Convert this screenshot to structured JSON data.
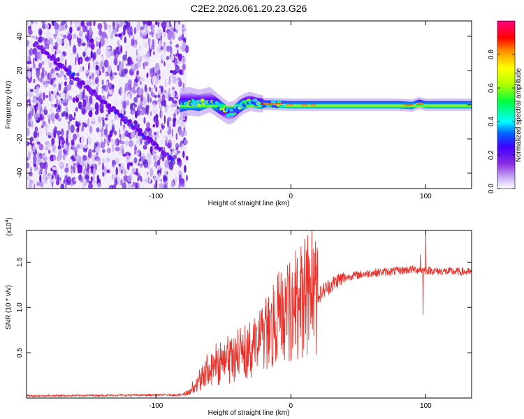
{
  "title": "C2E2.2026.061.20.23.G26",
  "chart_data": [
    {
      "type": "heatmap",
      "xlabel": "Height of straight line (km)",
      "ylabel": "Frequency (Hz)",
      "xlim": [
        -196,
        134
      ],
      "ylim": [
        -49,
        49
      ],
      "x_ticks": [
        -100,
        0,
        100
      ],
      "x_tick_labels": [
        "-100",
        "0",
        "100"
      ],
      "y_ticks": [
        -40,
        -20,
        0,
        20,
        40
      ],
      "y_tick_labels": [
        "-40",
        "-20",
        "0",
        "20",
        "40"
      ],
      "noise_region_x": [
        -196,
        -77
      ],
      "diagonal_track": {
        "start": [
          -190,
          36
        ],
        "end": [
          -88,
          -32
        ]
      },
      "signal_track": [
        [
          -82,
          1
        ],
        [
          -75,
          2
        ],
        [
          -68,
          1
        ],
        [
          -60,
          3
        ],
        [
          -55,
          0
        ],
        [
          -50,
          -3
        ],
        [
          -46,
          -5
        ],
        [
          -42,
          -4
        ],
        [
          -38,
          -1
        ],
        [
          -34,
          1
        ],
        [
          -30,
          2
        ],
        [
          -25,
          1
        ],
        [
          -20,
          0.5
        ],
        [
          -10,
          0.3
        ],
        [
          0,
          0
        ],
        [
          20,
          0
        ],
        [
          50,
          0
        ],
        [
          80,
          0
        ],
        [
          90,
          -0.5
        ],
        [
          95,
          1
        ],
        [
          100,
          0
        ],
        [
          134,
          0
        ]
      ],
      "colorbar": {
        "label": "Normalized spectral amplitude",
        "ticks": [
          0.0,
          0.2,
          0.4,
          0.6,
          0.8
        ],
        "tick_labels": [
          "0.0",
          "0.2",
          "0.4",
          "0.6",
          "0.8"
        ],
        "range": [
          0,
          1
        ]
      }
    },
    {
      "type": "line",
      "xlabel": "Height of straight line (km)",
      "ylabel": "SNR (10 * v/v)",
      "scale_label": "(x10",
      "scale_exponent": "4",
      "scale_suffix": ")",
      "xlim": [
        -196,
        134
      ],
      "ylim": [
        0,
        18500
      ],
      "x_ticks": [
        -100,
        0,
        100
      ],
      "x_tick_labels": [
        "-100",
        "0",
        "100"
      ],
      "y_ticks": [
        5000,
        10000,
        15000
      ],
      "y_tick_labels": [
        "0.5",
        "1.0",
        "1.5"
      ],
      "series": [
        {
          "name": "SNR",
          "color": "#e8322b",
          "envelope": [
            [
              -196,
              250
            ],
            [
              -80,
              350
            ],
            [
              -75,
              600
            ],
            [
              -70,
              1200
            ],
            [
              -65,
              2500
            ],
            [
              -55,
              3500
            ],
            [
              -45,
              4000
            ],
            [
              -35,
              4500
            ],
            [
              -25,
              5500
            ],
            [
              -15,
              7000
            ],
            [
              -5,
              8500
            ],
            [
              5,
              9500
            ],
            [
              15,
              10500
            ],
            [
              25,
              12000
            ],
            [
              35,
              13000
            ],
            [
              45,
              13500
            ],
            [
              60,
              13800
            ],
            [
              75,
              14000
            ],
            [
              90,
              14200
            ],
            [
              100,
              14100
            ],
            [
              110,
              14000
            ],
            [
              134,
              13900
            ]
          ],
          "spikes": [
            [
              -73,
              1800
            ],
            [
              -64,
              3500
            ],
            [
              -48,
              4500
            ],
            [
              -37,
              5500
            ],
            [
              -28,
              6400
            ],
            [
              -18,
              8200
            ],
            [
              -8,
              11000
            ],
            [
              4,
              12300
            ],
            [
              10,
              14500
            ],
            [
              12,
              4800
            ],
            [
              18,
              12500
            ],
            [
              96,
              15800
            ],
            [
              98,
              9200
            ],
            [
              100,
              18500
            ]
          ]
        }
      ]
    }
  ]
}
